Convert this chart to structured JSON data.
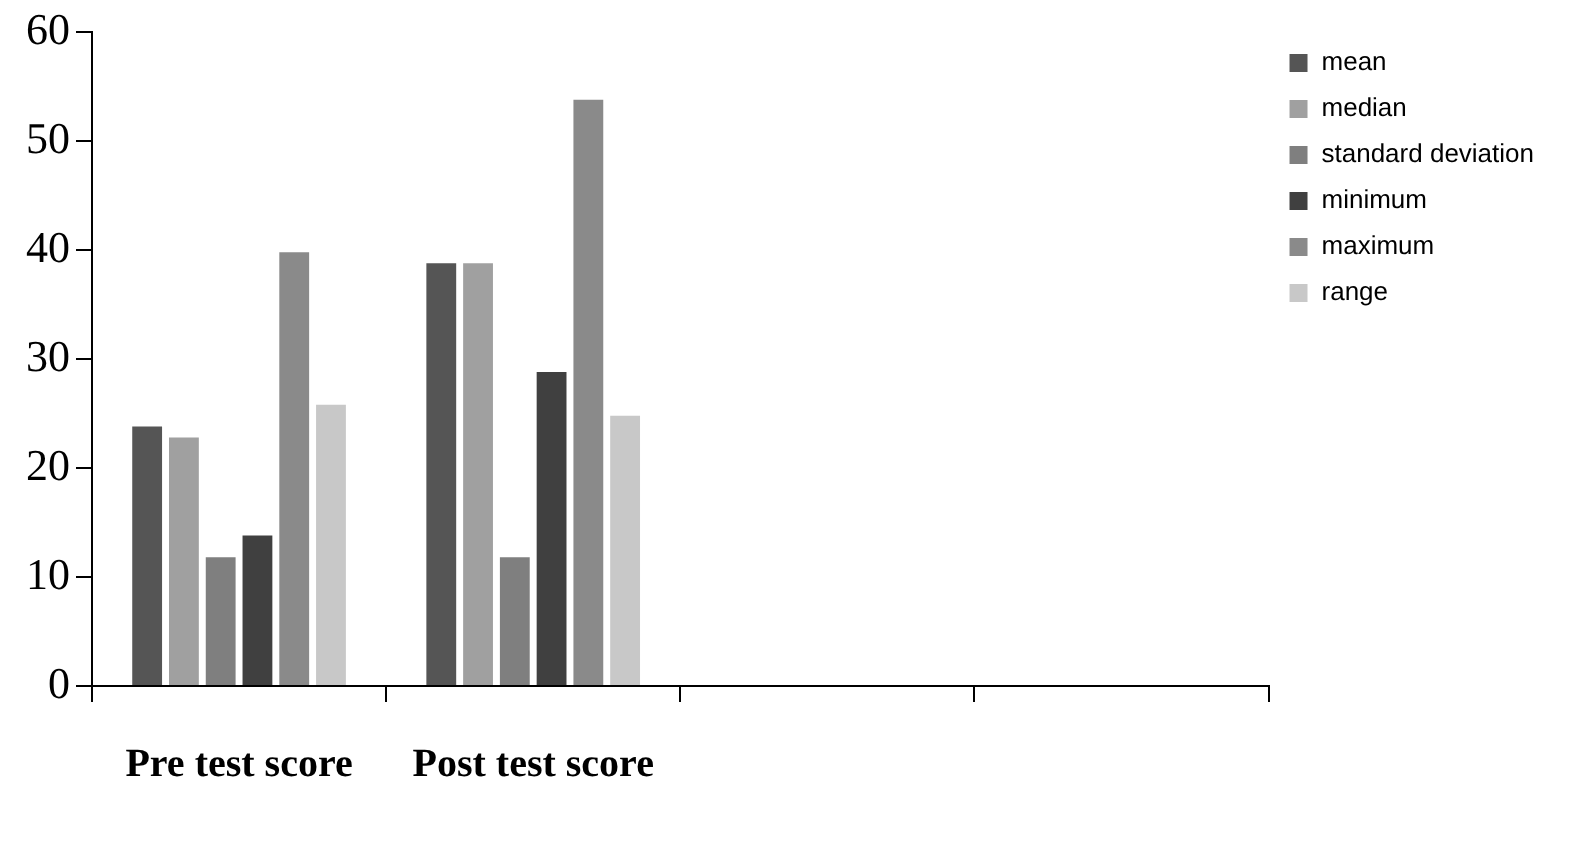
{
  "chart_data": {
    "type": "bar",
    "categories": [
      "Pre test score",
      "Post test score",
      null,
      null
    ],
    "series": [
      {
        "name": "mean",
        "color": "#555555",
        "values": [
          24,
          39,
          null,
          null
        ]
      },
      {
        "name": "median",
        "color": "#a0a0a0",
        "values": [
          23,
          39,
          null,
          null
        ]
      },
      {
        "name": "standard deviation",
        "color": "#7f7f7f",
        "values": [
          12,
          12,
          null,
          null
        ]
      },
      {
        "name": "minimum",
        "color": "#404040",
        "values": [
          14,
          29,
          null,
          null
        ]
      },
      {
        "name": "maximum",
        "color": "#8a8a8a",
        "values": [
          40,
          54,
          null,
          null
        ]
      },
      {
        "name": "range",
        "color": "#c8c8c8",
        "values": [
          26,
          25,
          null,
          null
        ]
      }
    ],
    "ylim": [
      0,
      60
    ],
    "yticks": [
      0,
      10,
      20,
      30,
      40,
      50,
      60
    ],
    "grid": false,
    "legend": "right"
  }
}
